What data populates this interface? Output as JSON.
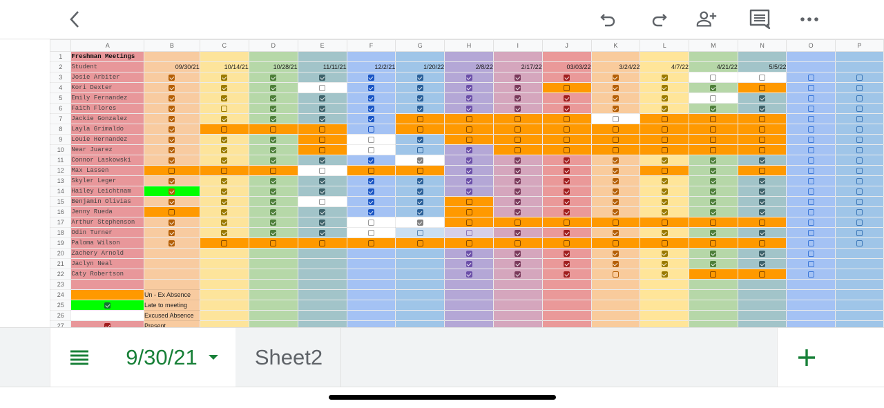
{
  "toolbar": {
    "back_icon": "chevron-left-icon",
    "undo_icon": "undo-icon",
    "redo_icon": "redo-icon",
    "share_icon": "add-person-icon",
    "comments_icon": "comment-icon",
    "more_icon": "more-horizontal-icon"
  },
  "sheet": {
    "column_headers": [
      "A",
      "B",
      "C",
      "D",
      "E",
      "F",
      "G",
      "H",
      "I",
      "J",
      "K",
      "L",
      "M",
      "N",
      "O",
      "P"
    ],
    "title": "Freshman Meetings",
    "student_header": "Student",
    "dates": [
      "09/30/21",
      "10/14/21",
      "10/28/21",
      "11/11/21",
      "12/2/21",
      "1/20/22",
      "2/8/22",
      "2/17/22",
      "03/03/22",
      "3/24/22",
      "4/7/22",
      "4/21/22",
      "5/5/22",
      "",
      ""
    ],
    "column_colors": {
      "A": "#e8979a",
      "B": "#f8cba0",
      "C": "#fde49b",
      "D": "#b6d8a8",
      "E": "#a2c4c9",
      "F": "#a4c2f4",
      "G": "#9fc5e8",
      "H": "#b4a7d6",
      "I": "#d5a6bd",
      "J": "#ea9999",
      "K": "#f9cb9c",
      "L": "#ffe599",
      "M": "#b6d7a8",
      "N": "#a2c4c9",
      "O": "#a4c2f4",
      "P": "#9fc5e8"
    },
    "checkbox_colors": {
      "B": "#b45f06",
      "C": "#9a7a00",
      "D": "#4e7f3a",
      "E": "#3f636b",
      "F": "#1a55c4",
      "G": "#2a6099",
      "H": "#6b4fa8",
      "I": "#7a3a5b",
      "J": "#a01e1e",
      "K": "#b45f06",
      "L": "#9a7a00",
      "M": "#4e7f3a",
      "N": "#3f636b",
      "O": "#3c78d8",
      "P": "#3d78b8"
    },
    "status_colors": {
      "unexcused_absence": "#ff9900",
      "late": "#00ff00",
      "excused": "#ffffff",
      "orange_box": "#8a4a00",
      "white_box": "#999999"
    },
    "students": [
      {
        "row": 3,
        "name": "Josie Arbiter",
        "cells": "CCCCCCCCCCCWWUU"
      },
      {
        "row": 4,
        "name": "Kori Dexter",
        "cells": "CCCWCCCCOCCCOUU"
      },
      {
        "row": 5,
        "name": "Emily Fernandez",
        "cells": "CCCCCCCCCCCWCUU"
      },
      {
        "row": 6,
        "name": "Faith Flores",
        "cells": "CUCCCCCCCCCCCUU"
      },
      {
        "row": 7,
        "name": "Jackie Gonzalez",
        "cells": "CCCCCOOOOWOOOUU"
      },
      {
        "row": 8,
        "name": "Layla Grimaldo",
        "cells": "COOOUOOOOOOOOUU"
      },
      {
        "row": 9,
        "name": "Louie Hernandez",
        "cells": "CCCOWCOOOOOOOUU"
      },
      {
        "row": 10,
        "name": "Near Juarez",
        "cells": "CCCOWUCOOOOOOUU"
      },
      {
        "row": 11,
        "name": "Connor Laskowski",
        "cells": "CCCCCXCCCCCCCUU"
      },
      {
        "row": 12,
        "name": "Max Lassen",
        "cells": "OOOWOOCCCCOCOUU"
      },
      {
        "row": 13,
        "name": "Skyler Leger",
        "cells": "CCCCCCCCCCCCCUU"
      },
      {
        "row": 14,
        "name": "Hailey Leichtnam",
        "cells": "GCCCCCCCCCCCCUU"
      },
      {
        "row": 15,
        "name": "Benjamin Olivias",
        "cells": "CCCWCCOCCCCCCUU"
      },
      {
        "row": 16,
        "name": "Jenny Rueda",
        "cells": "OCCCCCOCCCCCCUU"
      },
      {
        "row": 17,
        "name": "Arthur Stephenson",
        "cells": "CCCCWXOOOOOOOUU"
      },
      {
        "row": 18,
        "name": "Odin Turner",
        "cells": "CCCCWLLCCCCCCUU"
      },
      {
        "row": 19,
        "name": "Paloma Wilson",
        "cells": "COOOOOOOOOOOOUU"
      },
      {
        "row": 20,
        "name": "Zachery Arnold",
        "cells": "------CCCCCCCU-"
      },
      {
        "row": 21,
        "name": "Jaclyn Neal",
        "cells": "------CCCCCCCU-"
      },
      {
        "row": 22,
        "name": "Caty Robertson",
        "cells": "------CCCUCOOU-"
      }
    ],
    "legend": [
      {
        "row": 23,
        "label": "",
        "swatch": "none"
      },
      {
        "row": 24,
        "label": "Un - Ex Absence",
        "swatch": "unexcused"
      },
      {
        "row": 25,
        "label": "Late to meeting",
        "swatch": "late"
      },
      {
        "row": 26,
        "label": "Excused Absence",
        "swatch": "excused"
      },
      {
        "row": 27,
        "label": "Present",
        "swatch": "present"
      }
    ]
  },
  "bottom_bar": {
    "menu_icon": "sheet-list-icon",
    "active_tab": "9/30/21",
    "tabs": [
      "Sheet2"
    ],
    "add_icon": "plus-icon"
  }
}
